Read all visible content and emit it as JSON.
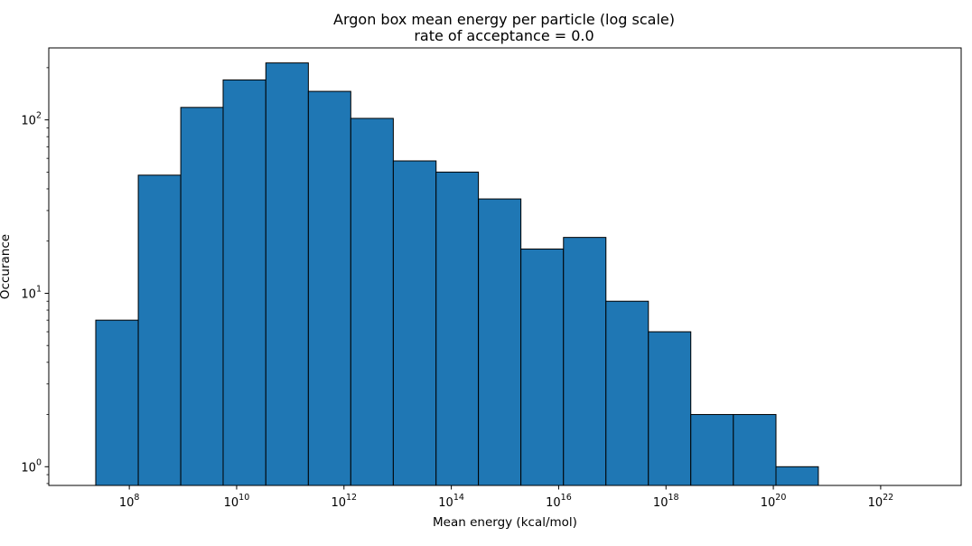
{
  "chart_data": {
    "type": "bar",
    "title": "Argon box mean energy per particle (log scale)",
    "subtitle": "rate of acceptance = 0.0",
    "xlabel": "Mean energy (kcal/mol)",
    "ylabel": "Occurance",
    "x_scale": "log",
    "y_scale": "log",
    "xlim": [
      3160000.0,
      3.16e+23
    ],
    "ylim": [
      0.78,
      260
    ],
    "x_ticks": [
      {
        "base": "10",
        "exp": "8",
        "value": 100000000.0
      },
      {
        "base": "10",
        "exp": "10",
        "value": 10000000000.0
      },
      {
        "base": "10",
        "exp": "12",
        "value": 1000000000000.0
      },
      {
        "base": "10",
        "exp": "14",
        "value": 100000000000000.0
      },
      {
        "base": "10",
        "exp": "16",
        "value": 1e+16
      },
      {
        "base": "10",
        "exp": "18",
        "value": 1e+18
      },
      {
        "base": "10",
        "exp": "20",
        "value": 1e+20
      },
      {
        "base": "10",
        "exp": "22",
        "value": 1e+22
      }
    ],
    "y_ticks": [
      {
        "base": "10",
        "exp": "0",
        "value": 1
      },
      {
        "base": "10",
        "exp": "1",
        "value": 10
      },
      {
        "base": "10",
        "exp": "2",
        "value": 100
      }
    ],
    "bins": [
      {
        "left": 23700000.0,
        "right": 147000000.0,
        "count": 7
      },
      {
        "left": 147000000.0,
        "right": 910000000.0,
        "count": 48
      },
      {
        "left": 910000000.0,
        "right": 5600000000.0,
        "count": 118
      },
      {
        "left": 5600000000.0,
        "right": 35000000000.0,
        "count": 170
      },
      {
        "left": 35000000000.0,
        "right": 217000000000.0,
        "count": 213
      },
      {
        "left": 217000000000.0,
        "right": 1340000000000.0,
        "count": 146
      },
      {
        "left": 1340000000000.0,
        "right": 8300000000000.0,
        "count": 102
      },
      {
        "left": 8300000000000.0,
        "right": 52000000000000.0,
        "count": 58
      },
      {
        "left": 52000000000000.0,
        "right": 320000000000000.0,
        "count": 50
      },
      {
        "left": 320000000000000.0,
        "right": 1980000000000000.0,
        "count": 35
      },
      {
        "left": 1980000000000000.0,
        "right": 1.23e+16,
        "count": 18
      },
      {
        "left": 1.23e+16,
        "right": 7.6e+16,
        "count": 21
      },
      {
        "left": 7.6e+16,
        "right": 4.7e+17,
        "count": 9
      },
      {
        "left": 4.7e+17,
        "right": 2.9e+18,
        "count": 6
      },
      {
        "left": 2.9e+18,
        "right": 1.8e+19,
        "count": 2
      },
      {
        "left": 1.8e+19,
        "right": 1.12e+20,
        "count": 2
      },
      {
        "left": 1.12e+20,
        "right": 6.9e+20,
        "count": 1
      }
    ],
    "bar_color": "#1f77b4",
    "edge_color": "#000000",
    "grid": false,
    "legend": false
  }
}
